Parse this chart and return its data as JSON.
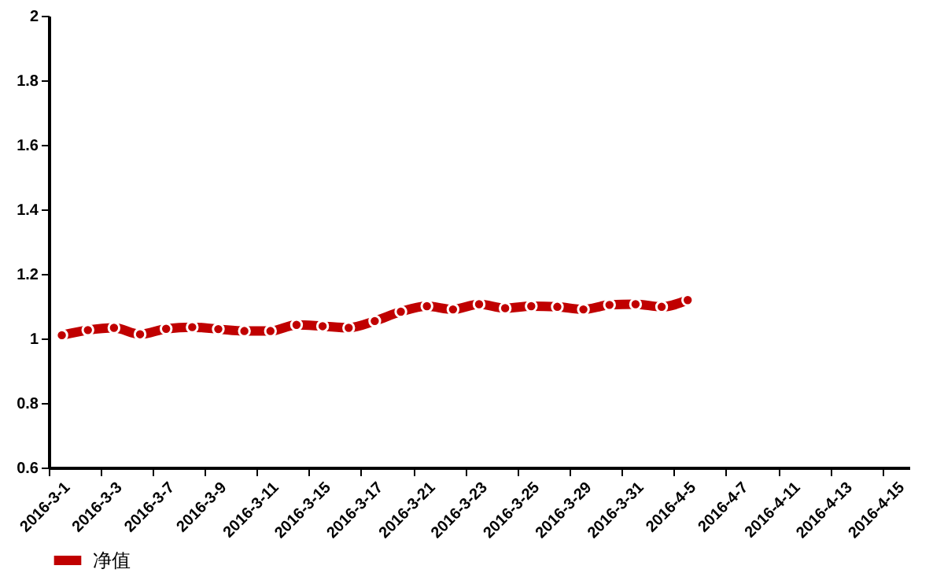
{
  "chart_data": {
    "type": "line",
    "categories": [
      "2016-3-1",
      null,
      "2016-3-3",
      null,
      "2016-3-7",
      null,
      "2016-3-9",
      null,
      "2016-3-11",
      null,
      "2016-3-15",
      null,
      "2016-3-17",
      null,
      "2016-3-21",
      null,
      "2016-3-23",
      null,
      "2016-3-25",
      null,
      "2016-3-29",
      null,
      "2016-3-31",
      null,
      "2016-4-5",
      null,
      "2016-4-7",
      null,
      "2016-4-11",
      null,
      "2016-4-13",
      null,
      "2016-4-15"
    ],
    "series": [
      {
        "name": "净值",
        "color": "#c00000",
        "values": [
          1.01,
          1.026,
          1.033,
          1.013,
          1.03,
          1.035,
          1.029,
          1.023,
          1.023,
          1.042,
          1.038,
          1.033,
          1.054,
          1.083,
          1.1,
          1.09,
          1.106,
          1.094,
          1.1,
          1.098,
          1.09,
          1.104,
          1.106,
          1.098,
          1.119,
          null,
          null,
          null,
          null,
          null,
          null,
          null,
          null
        ]
      }
    ],
    "ylim": [
      0.6,
      2
    ],
    "yticks": [
      0.6,
      0.8,
      1,
      1.2,
      1.4,
      1.6,
      1.8,
      2
    ],
    "grid": false,
    "legend": "bottom left",
    "marker": "circle",
    "line_style": "solid"
  }
}
